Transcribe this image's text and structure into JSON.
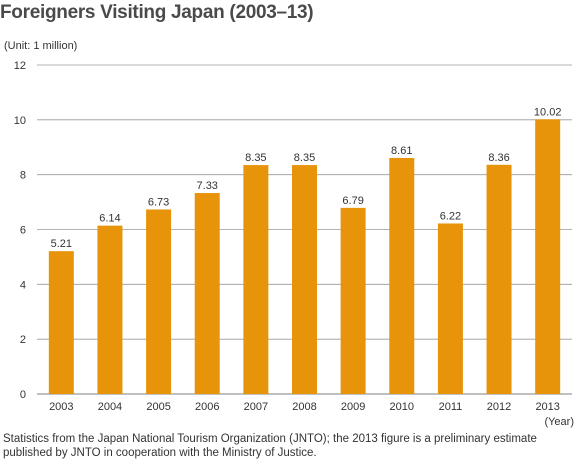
{
  "title": "Foreigners Visiting Japan (2003–13)",
  "unit_label": "(Unit: 1 million)",
  "note": "Statistics from the Japan National Tourism Organization (JNTO); the 2013 figure is a preliminary estimate published by JNTO in cooperation with the Ministry of Justice.",
  "colors": {
    "bar": "#e8940a",
    "grid": "#9a9a9a",
    "text": "#333333"
  },
  "chart_data": {
    "type": "bar",
    "title": "Foreigners Visiting Japan (2003–13)",
    "categories": [
      "2003",
      "2004",
      "2005",
      "2006",
      "2007",
      "2008",
      "2009",
      "2010",
      "2011",
      "2012",
      "2013"
    ],
    "values": [
      5.21,
      6.14,
      6.73,
      7.33,
      8.35,
      8.35,
      6.79,
      8.61,
      6.22,
      8.36,
      10.02
    ],
    "data_labels": [
      "5.21",
      "6.14",
      "6.73",
      "7.33",
      "8.35",
      "8.35",
      "6.79",
      "8.61",
      "6.22",
      "8.36",
      "10.02"
    ],
    "xlabel": "(Year)",
    "ylabel": "(Unit: 1 million)",
    "ylim": [
      0,
      12
    ],
    "yticks": [
      "0",
      "2",
      "4",
      "6",
      "8",
      "10",
      "12"
    ],
    "grid": true
  }
}
